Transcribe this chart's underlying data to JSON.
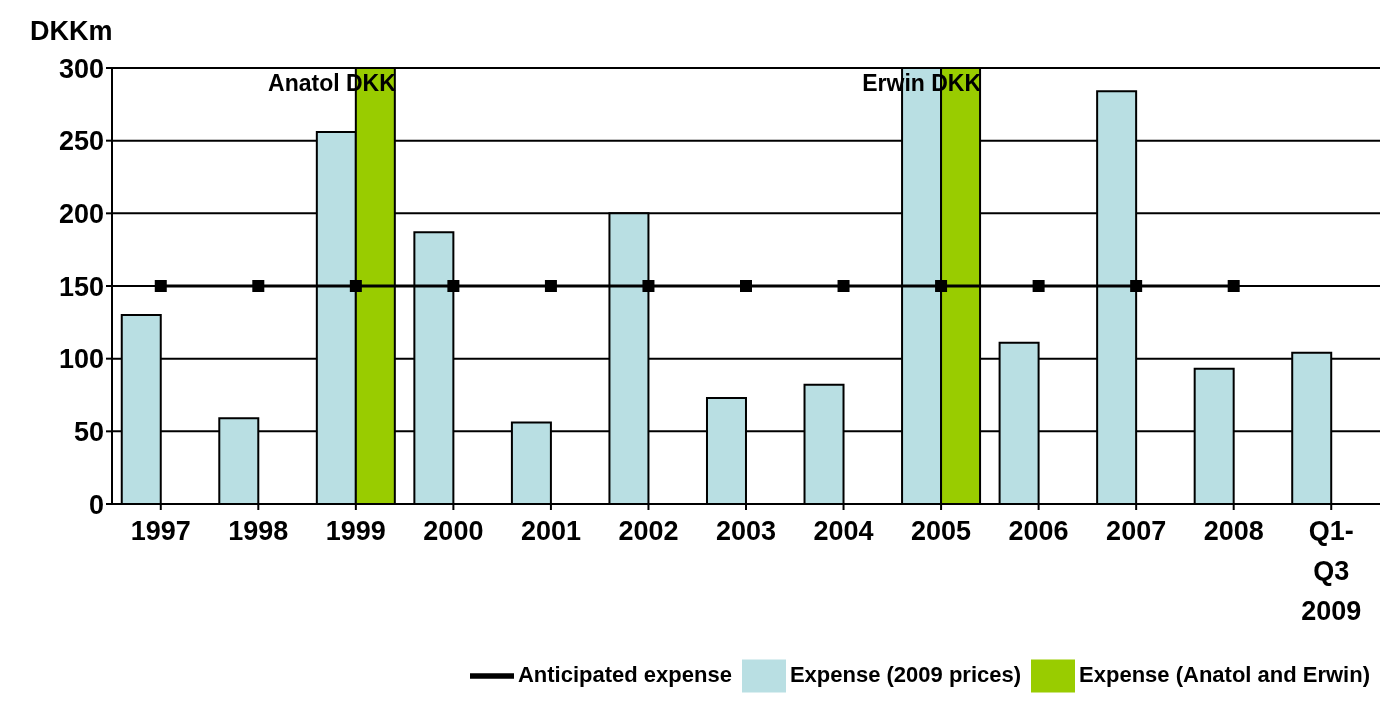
{
  "chart_data": {
    "type": "bar",
    "ylabel": "DKKm",
    "categories": [
      "1997",
      "1998",
      "1999",
      "2000",
      "2001",
      "2002",
      "2003",
      "2004",
      "2005",
      "2006",
      "2007",
      "2008",
      "Q1-Q3 2009"
    ],
    "series": [
      {
        "name": "Expense (2009 prices)",
        "color": "#b9dfe3",
        "values": [
          130,
          59,
          256,
          187,
          56,
          200,
          73,
          82,
          300,
          111,
          284,
          93,
          104
        ]
      },
      {
        "name": "Expense (Anatol and Erwin)",
        "color": "#99cc00",
        "values": [
          null,
          null,
          300,
          null,
          null,
          null,
          null,
          null,
          300,
          null,
          null,
          null,
          null
        ]
      },
      {
        "name": "Anticipated expense",
        "type": "line",
        "color": "#000000",
        "marker": "square",
        "values": [
          150,
          150,
          150,
          150,
          150,
          150,
          150,
          150,
          150,
          150,
          150,
          150,
          null
        ]
      }
    ],
    "ylim": [
      0,
      300
    ],
    "yticks": [
      0,
      50,
      100,
      150,
      200,
      250,
      300
    ],
    "grid": "y",
    "legend": "bottom",
    "annotations": [
      {
        "text": "Anatol DKK",
        "x": "1999",
        "y": 290
      },
      {
        "text": "Erwin DKK",
        "x": "2005",
        "y": 290
      }
    ]
  }
}
